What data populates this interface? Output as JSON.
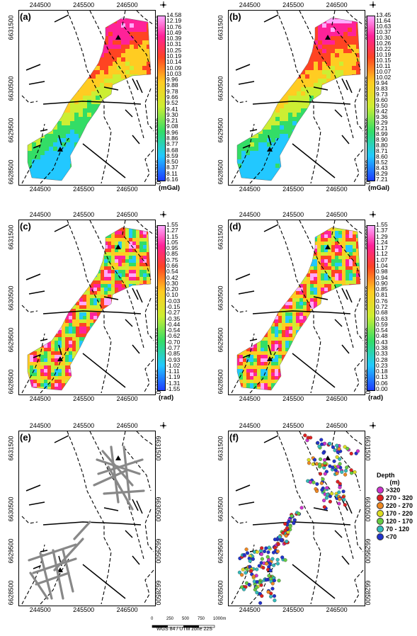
{
  "panels": [
    {
      "id": "a",
      "label": "(a)",
      "unit": "(mGal)",
      "ticks": [
        "14.58",
        "12.19",
        "10.76",
        "10.49",
        "10.39",
        "10.31",
        "10.25",
        "10.19",
        "10.14",
        "10.09",
        "10.03",
        "9.96",
        "9.88",
        "9.78",
        "9.66",
        "9.52",
        "9.41",
        "9.30",
        "9.21",
        "9.08",
        "8.96",
        "8.86",
        "8.77",
        "8.68",
        "8.59",
        "8.50",
        "8.37",
        "8.11",
        "6.16"
      ],
      "type": "gravity"
    },
    {
      "id": "b",
      "label": "(b)",
      "unit": "(mGal)",
      "ticks": [
        "13.45",
        "11.64",
        "10.63",
        "10.37",
        "10.30",
        "10.26",
        "10.22",
        "10.19",
        "10.15",
        "10.11",
        "10.07",
        "10.02",
        "9.94",
        "9.83",
        "9.73",
        "9.60",
        "9.50",
        "9.42",
        "9.36",
        "9.29",
        "9.21",
        "8.99",
        "8.90",
        "8.80",
        "8.71",
        "8.60",
        "8.52",
        "8.43",
        "8.29",
        "7.21"
      ],
      "type": "gravity"
    },
    {
      "id": "c",
      "label": "(c)",
      "unit": "(rad)",
      "ticks": [
        "1.55",
        "1.27",
        "1.15",
        "1.05",
        "0.95",
        "0.85",
        "0.75",
        "0.66",
        "0.54",
        "0.42",
        "0.30",
        "0.20",
        "0.10",
        "-0.03",
        "-0.15",
        "-0.27",
        "-0.35",
        "-0.44",
        "-0.54",
        "-0.62",
        "-0.70",
        "-0.77",
        "-0.85",
        "-0.93",
        "-1.02",
        "-1.11",
        "-1.19",
        "-1.31",
        "-1.55"
      ],
      "type": "rad"
    },
    {
      "id": "d",
      "label": "(d)",
      "unit": "(rad)",
      "ticks": [
        "1.55",
        "1.37",
        "1.29",
        "1.24",
        "1.17",
        "1.12",
        "1.07",
        "1.04",
        "0.98",
        "0.94",
        "0.90",
        "0.85",
        "0.81",
        "0.76",
        "0.72",
        "0.68",
        "0.63",
        "0.59",
        "0.54",
        "0.48",
        "0.43",
        "0.38",
        "0.33",
        "0.28",
        "0.23",
        "0.18",
        "0.13",
        "0.06",
        "0.00"
      ],
      "type": "rad"
    },
    {
      "id": "e",
      "label": "(e)",
      "type": "lines"
    },
    {
      "id": "f",
      "label": "(f)",
      "type": "depth"
    }
  ],
  "axes": {
    "x_ticks": [
      "244500",
      "245500",
      "246500"
    ],
    "y_ticks": [
      "6628500",
      "6629500",
      "6630500",
      "6631500"
    ]
  },
  "depth_legend": {
    "title": "Depth",
    "unit": "(m)",
    "items": [
      {
        "label": ">320",
        "color": "#cc33cc"
      },
      {
        "label": "270 - 320",
        "color": "#dd2222"
      },
      {
        "label": "220 - 270",
        "color": "#ee8822"
      },
      {
        "label": "170 - 220",
        "color": "#dddd22"
      },
      {
        "label": "120 - 170",
        "color": "#66cc44"
      },
      {
        "label": "70 - 120",
        "color": "#33bbbb"
      },
      {
        "label": "<70",
        "color": "#2233cc"
      }
    ]
  },
  "scale": {
    "ticks": [
      "0",
      "250",
      "500",
      "750",
      "1000m"
    ],
    "caption": "WGS 84 / UTM zone 22S"
  }
}
